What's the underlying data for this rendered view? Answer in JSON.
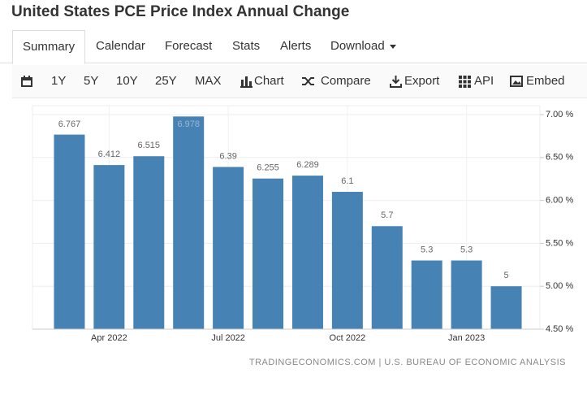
{
  "header": {
    "title": "United States PCE Price Index Annual Change"
  },
  "tabs": [
    "Summary",
    "Calendar",
    "Forecast",
    "Stats",
    "Alerts",
    "Download"
  ],
  "toolbar": [
    "1Y",
    "5Y",
    "10Y",
    "25Y",
    "MAX",
    "Chart",
    "Compare",
    "Export",
    "API",
    "Embed"
  ],
  "chart_data": {
    "type": "bar",
    "categories": [
      null,
      "Apr 2022",
      null,
      null,
      "Jul 2022",
      null,
      null,
      "Oct 2022",
      null,
      null,
      "Jan 2023",
      null
    ],
    "values": [
      6.767,
      6.412,
      6.515,
      6.978,
      6.39,
      6.255,
      6.289,
      6.1,
      5.7,
      5.3,
      5.3,
      5
    ],
    "color": "#4682b4",
    "ylim": [
      4.5,
      7
    ],
    "yticks": [
      {
        "value": 4.5,
        "label": "4.50 %"
      },
      {
        "value": 5,
        "label": "5.00 %"
      },
      {
        "value": 5.5,
        "label": "5.50 %"
      },
      {
        "value": 6,
        "label": "6.00 %"
      },
      {
        "value": 6.5,
        "label": "6.50 %"
      },
      {
        "value": 7,
        "label": "7.00 %"
      }
    ],
    "grid": true,
    "source": "TRADINGECONOMICS.COM | U.S. BUREAU OF ECONOMIC ANALYSIS"
  }
}
